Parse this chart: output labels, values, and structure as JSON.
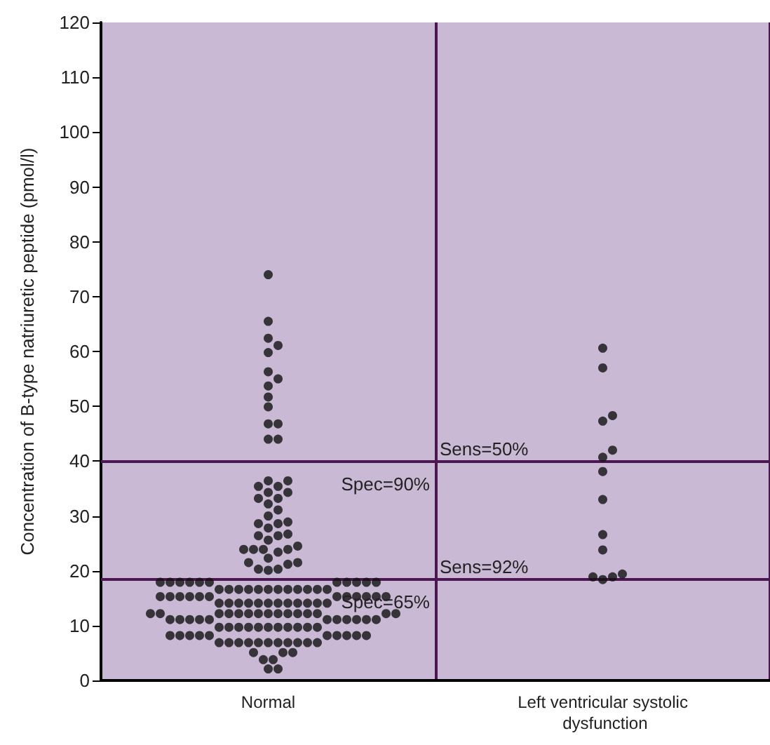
{
  "chart_data": {
    "type": "scatter",
    "categories": [
      "Normal",
      "Left ventricular systolic dysfunction"
    ],
    "ylabel": "Concentration of B-type natriuretic peptide (pmol/l)",
    "ylim": [
      0,
      120
    ],
    "yticks": [
      0,
      10,
      20,
      30,
      40,
      50,
      60,
      70,
      80,
      90,
      100,
      110,
      120
    ],
    "grid": "x",
    "marker": "circle",
    "series": [
      {
        "color": "#111111",
        "x": [
          "Normal",
          "Normal",
          "Normal",
          "Normal",
          "Normal",
          "Normal",
          "Normal",
          "Normal",
          "Normal",
          "Normal",
          "Normal",
          "Normal",
          "Normal",
          "Normal",
          "Normal",
          "Normal",
          "Normal",
          "Normal",
          "Normal",
          "Normal",
          "Normal",
          "Normal",
          "Normal",
          "Normal",
          "Normal",
          "Normal",
          "Normal",
          "Normal",
          "Normal",
          "Normal",
          "Normal",
          "Normal",
          "Normal",
          "Normal",
          "Normal",
          "Normal",
          "Normal",
          "Normal",
          "Normal",
          "Normal",
          "Normal",
          "Normal",
          "Normal",
          "Normal",
          "Normal",
          "Normal",
          "Normal",
          "Normal",
          "Normal",
          "Normal",
          "Normal",
          "Normal",
          "Normal",
          "Normal",
          "Normal",
          "Normal",
          "Normal",
          "Normal",
          "Normal",
          "Normal",
          "Normal",
          "Normal",
          "Normal",
          "Normal",
          "Normal",
          "Normal",
          "Normal",
          "Normal",
          "Normal",
          "Normal",
          "Normal",
          "Normal",
          "Normal",
          "Normal",
          "Normal",
          "Normal",
          "Normal",
          "Normal",
          "Normal",
          "Normal",
          "Normal",
          "Normal",
          "Normal",
          "Normal",
          "Normal",
          "Normal",
          "Normal",
          "Normal",
          "Normal",
          "Normal",
          "Normal",
          "Normal",
          "Normal",
          "Normal",
          "Normal",
          "Normal",
          "Normal",
          "Normal",
          "Normal",
          "Normal",
          "Normal",
          "Normal",
          "Normal",
          "Normal",
          "Normal",
          "Normal",
          "Normal",
          "Normal",
          "Normal",
          "Normal",
          "Normal",
          "Normal",
          "Normal",
          "Normal",
          "Normal",
          "Normal",
          "Normal",
          "Normal",
          "Normal",
          "Normal",
          "Normal",
          "Normal",
          "Normal",
          "Normal",
          "Normal",
          "Normal",
          "Normal",
          "Normal",
          "Normal",
          "Normal",
          "Normal",
          "Normal",
          "Normal",
          "Normal",
          "Normal",
          "Normal",
          "Normal",
          "Normal",
          "Normal",
          "Normal",
          "Normal",
          "Normal",
          "Normal",
          "Normal",
          "Normal",
          "Normal",
          "Normal",
          "Normal",
          "Normal",
          "Normal",
          "Normal",
          "Normal",
          "Normal",
          "Normal",
          "Normal",
          "Normal",
          "Normal",
          "Normal"
        ],
        "values": [
          74,
          65.5,
          62.4,
          61.1,
          59.8,
          56.3,
          55,
          53.7,
          51.7,
          49.9,
          46.8,
          46.8,
          44,
          44,
          36.4,
          36.4,
          35.4,
          35.4,
          34.3,
          34.3,
          33.2,
          33.2,
          32.2,
          31.1,
          30,
          28.9,
          27.8,
          26.7,
          25.6,
          24.5,
          23.4,
          22.3,
          21.2,
          20.1,
          28.6,
          28.6,
          26.4,
          26.4,
          23.9,
          23.9,
          23.9,
          23.9,
          21.5,
          21.5,
          20.3,
          20.3,
          17.9,
          17.9,
          17.9,
          17.9,
          17.9,
          17.9,
          17.9,
          17.9,
          17.9,
          17.9,
          17.9,
          16.6,
          16.6,
          16.6,
          16.6,
          16.6,
          16.6,
          16.6,
          16.6,
          16.6,
          16.6,
          16.6,
          16.6,
          15.3,
          15.3,
          15.3,
          15.3,
          15.3,
          15.3,
          15.3,
          15.3,
          15.3,
          15.3,
          15.3,
          15.3,
          14.1,
          14.1,
          14.1,
          14.1,
          14.1,
          14.1,
          14.1,
          14.1,
          14.1,
          14.1,
          14.1,
          14.1,
          12.2,
          12.2,
          12.2,
          12.2,
          12.2,
          12.2,
          12.2,
          12.2,
          12.2,
          12.2,
          12.2,
          12.2,
          12.2,
          12.2,
          12.2,
          11.1,
          11.1,
          11.1,
          11.1,
          11.1,
          11.1,
          11.1,
          11.1,
          11.1,
          11.1,
          11.1,
          9.7,
          9.7,
          9.7,
          9.7,
          9.7,
          9.7,
          9.7,
          9.7,
          9.7,
          9.7,
          9.7,
          8.2,
          8.2,
          8.2,
          8.2,
          8.2,
          8.2,
          8.2,
          8.2,
          8.2,
          8.2,
          6.9,
          6.9,
          6.9,
          6.9,
          6.9,
          6.9,
          6.9,
          6.9,
          6.9,
          6.9,
          6.9,
          5.1,
          5.1,
          5.1,
          3.8,
          3.8,
          2.1,
          2.1
        ]
      },
      {
        "color": "#111111",
        "x": [
          "Left ventricular systolic dysfunction",
          "Left ventricular systolic dysfunction",
          "Left ventricular systolic dysfunction",
          "Left ventricular systolic dysfunction",
          "Left ventricular systolic dysfunction",
          "Left ventricular systolic dysfunction",
          "Left ventricular systolic dysfunction",
          "Left ventricular systolic dysfunction",
          "Left ventricular systolic dysfunction",
          "Left ventricular systolic dysfunction",
          "Left ventricular systolic dysfunction",
          "Left ventricular systolic dysfunction",
          "Left ventricular systolic dysfunction",
          "Left ventricular systolic dysfunction"
        ],
        "values": [
          60.6,
          57,
          48.3,
          47.3,
          42,
          40.7,
          38.1,
          33,
          26.6,
          23.8,
          19.4,
          18.9,
          18.9,
          18.4
        ]
      }
    ],
    "ref_lines": [
      {
        "axis": "y",
        "value": 40,
        "color": "#4b1750"
      },
      {
        "axis": "y",
        "value": 18.5,
        "color": "#4b1750"
      }
    ],
    "annotations": [
      "Sens=50%",
      "Spec=90%",
      "Sens=92%",
      "Spec=65%"
    ]
  }
}
